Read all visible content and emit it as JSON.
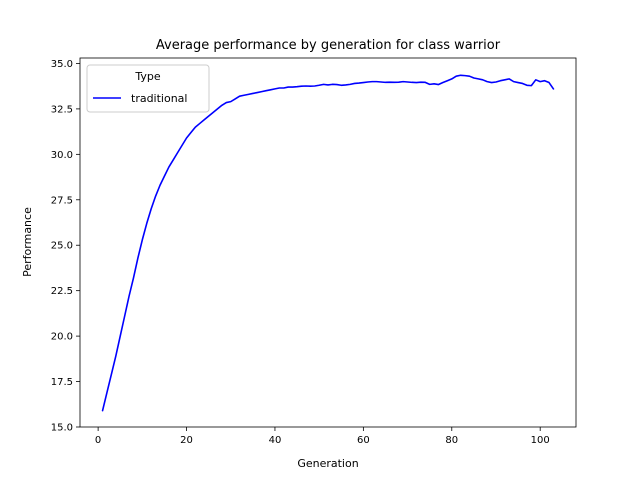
{
  "chart_data": {
    "type": "line",
    "title": "Average performance by generation for class warrior",
    "xlabel": "Generation",
    "ylabel": "Performance",
    "xlim": [
      -4.1,
      108.1
    ],
    "ylim": [
      15.0,
      35.3
    ],
    "xticks": [
      0,
      20,
      40,
      60,
      80,
      100
    ],
    "xtick_labels": [
      "0",
      "20",
      "40",
      "60",
      "80",
      "100"
    ],
    "yticks": [
      15.0,
      17.5,
      20.0,
      22.5,
      25.0,
      27.5,
      30.0,
      32.5,
      35.0
    ],
    "ytick_labels": [
      "15.0",
      "17.5",
      "20.0",
      "22.5",
      "25.0",
      "27.5",
      "30.0",
      "32.5",
      "35.0"
    ],
    "grid": false,
    "legend": {
      "title": "Type",
      "placement": "upper-left",
      "entries": [
        "traditional"
      ]
    },
    "series": [
      {
        "name": "traditional",
        "color": "#0000ff",
        "x": [
          1,
          2,
          3,
          4,
          5,
          6,
          7,
          8,
          9,
          10,
          11,
          12,
          13,
          14,
          15,
          16,
          17,
          18,
          19,
          20,
          21,
          22,
          23,
          24,
          25,
          26,
          27,
          28,
          29,
          30,
          31,
          32,
          33,
          34,
          35,
          36,
          37,
          38,
          39,
          40,
          41,
          42,
          43,
          44,
          45,
          46,
          47,
          48,
          49,
          50,
          51,
          52,
          53,
          54,
          55,
          56,
          57,
          58,
          59,
          60,
          61,
          62,
          63,
          64,
          65,
          66,
          67,
          68,
          69,
          70,
          71,
          72,
          73,
          74,
          75,
          76,
          77,
          78,
          79,
          80,
          81,
          82,
          83,
          84,
          85,
          86,
          87,
          88,
          89,
          90,
          91,
          92,
          93,
          94,
          95,
          96,
          97,
          98,
          99,
          100,
          101,
          102,
          103
        ],
        "y": [
          15.9,
          16.9,
          17.9,
          18.9,
          20.0,
          21.1,
          22.2,
          23.2,
          24.3,
          25.3,
          26.2,
          27.0,
          27.7,
          28.3,
          28.8,
          29.3,
          29.7,
          30.1,
          30.5,
          30.9,
          31.2,
          31.5,
          31.7,
          31.9,
          32.1,
          32.3,
          32.5,
          32.7,
          32.85,
          32.9,
          33.05,
          33.2,
          33.25,
          33.3,
          33.35,
          33.4,
          33.45,
          33.5,
          33.55,
          33.6,
          33.65,
          33.65,
          33.7,
          33.7,
          33.72,
          33.75,
          33.76,
          33.75,
          33.76,
          33.8,
          33.85,
          33.82,
          33.85,
          33.84,
          33.8,
          33.82,
          33.85,
          33.9,
          33.92,
          33.95,
          33.98,
          34.0,
          34.0,
          33.98,
          33.96,
          33.97,
          33.96,
          33.97,
          34.0,
          33.98,
          33.96,
          33.95,
          33.97,
          33.96,
          33.85,
          33.88,
          33.84,
          33.95,
          34.05,
          34.15,
          34.3,
          34.35,
          34.33,
          34.3,
          34.2,
          34.15,
          34.1,
          34.0,
          33.95,
          33.98,
          34.05,
          34.1,
          34.15,
          34.0,
          33.95,
          33.9,
          33.8,
          33.78,
          34.1,
          34.0,
          34.05,
          33.95,
          33.6
        ]
      }
    ]
  }
}
